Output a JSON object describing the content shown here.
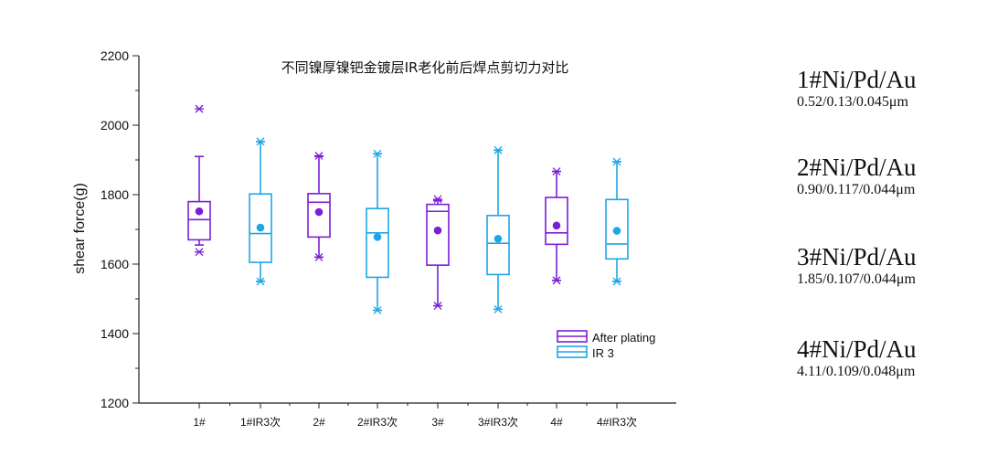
{
  "chart_data": {
    "type": "box",
    "title": "不同镍厚镍钯金镀层IR老化前后焊点剪切力对比",
    "ylabel": "shear force(g)",
    "xlabel": "",
    "ylim": [
      1200,
      2200
    ],
    "yticks": [
      1200,
      1400,
      1600,
      1800,
      2000,
      2200
    ],
    "grid": false,
    "legend_position": "bottom-right",
    "legend": [
      {
        "name": "After plating",
        "color": "#7B1FD6"
      },
      {
        "name": "IR 3",
        "color": "#1EA6E6"
      }
    ],
    "categories": [
      "1#",
      "1#IR3次",
      "2#",
      "2#IR3次",
      "3#",
      "3#IR3次",
      "4#",
      "4#IR3次"
    ],
    "boxes": [
      {
        "category": "1#",
        "series": "After plating",
        "whisker_low": 1655,
        "q1": 1670,
        "median": 1728,
        "q3": 1780,
        "whisker_high": 1910,
        "mean": 1752,
        "min": 1635,
        "max": 2047
      },
      {
        "category": "1#IR3次",
        "series": "IR 3",
        "whisker_low": 1550,
        "q1": 1605,
        "median": 1688,
        "q3": 1802,
        "whisker_high": 1953,
        "mean": 1705,
        "min": 1550,
        "max": 1953
      },
      {
        "category": "2#",
        "series": "After plating",
        "whisker_low": 1620,
        "q1": 1678,
        "median": 1778,
        "q3": 1803,
        "whisker_high": 1910,
        "mean": 1750,
        "min": 1620,
        "max": 1912
      },
      {
        "category": "2#IR3次",
        "series": "IR 3",
        "whisker_low": 1467,
        "q1": 1562,
        "median": 1690,
        "q3": 1760,
        "whisker_high": 1918,
        "mean": 1678,
        "min": 1467,
        "max": 1918
      },
      {
        "category": "3#",
        "series": "After plating",
        "whisker_low": 1480,
        "q1": 1597,
        "median": 1752,
        "q3": 1772,
        "whisker_high": 1783,
        "mean": 1697,
        "min": 1480,
        "max": 1787
      },
      {
        "category": "3#IR3次",
        "series": "IR 3",
        "whisker_low": 1470,
        "q1": 1570,
        "median": 1660,
        "q3": 1740,
        "whisker_high": 1928,
        "mean": 1673,
        "min": 1470,
        "max": 1928
      },
      {
        "category": "4#",
        "series": "After plating",
        "whisker_low": 1553,
        "q1": 1657,
        "median": 1690,
        "q3": 1792,
        "whisker_high": 1867,
        "mean": 1711,
        "min": 1553,
        "max": 1867
      },
      {
        "category": "4#IR3次",
        "series": "IR 3",
        "whisker_low": 1550,
        "q1": 1615,
        "median": 1658,
        "q3": 1786,
        "whisker_high": 1895,
        "mean": 1696,
        "min": 1550,
        "max": 1895
      }
    ]
  },
  "specs": [
    {
      "name": "1#Ni/Pd/Au",
      "dims": "0.52/0.13/0.045μm"
    },
    {
      "name": "2#Ni/Pd/Au",
      "dims": "0.90/0.117/0.044μm"
    },
    {
      "name": "3#Ni/Pd/Au",
      "dims": "1.85/0.107/0.044μm"
    },
    {
      "name": "4#Ni/Pd/Au",
      "dims": "4.11/0.109/0.048μm"
    }
  ]
}
